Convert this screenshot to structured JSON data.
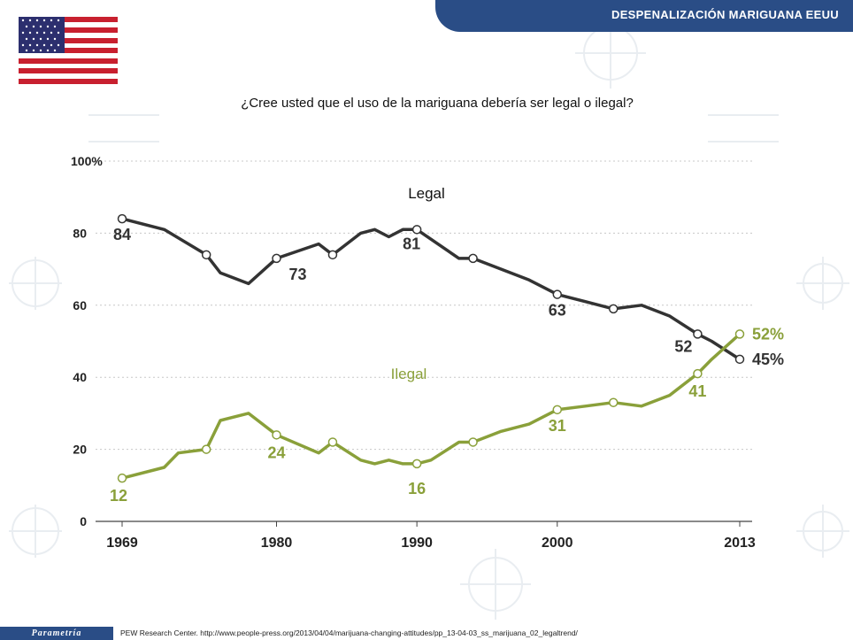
{
  "header": {
    "title": "DESPENALIZACIÓN   MARIGUANA  EEUU"
  },
  "flag": {
    "icon": "us-flag-icon"
  },
  "question": "¿Cree usted que el uso de la mariguana debería ser legal o ilegal?",
  "footer": {
    "logo_text": "Parametría",
    "source": "PEW Research Center.  http://www.people-press.org/2013/04/04/marijuana-changing-attitudes/pp_13-04-03_ss_marijuana_02_legaltrend/"
  },
  "colors": {
    "legal": "#333333",
    "ilegal": "#8aa03a",
    "header": "#2a4d86"
  },
  "chart_data": {
    "type": "line",
    "y_ticks": [
      "100%",
      "80",
      "60",
      "40",
      "20",
      "0"
    ],
    "x_ticks": [
      "1969",
      "1980",
      "1990",
      "2000",
      "2013"
    ],
    "ylim": [
      0,
      100
    ],
    "xlim": [
      1969,
      2013
    ],
    "grid": "horizontal dotted",
    "series": [
      {
        "name": "Legal",
        "color": "#333333",
        "points": [
          [
            1969,
            84
          ],
          [
            1972,
            81
          ],
          [
            1975,
            74
          ],
          [
            1976,
            69
          ],
          [
            1978,
            66
          ],
          [
            1980,
            73
          ],
          [
            1983,
            77
          ],
          [
            1984,
            74
          ],
          [
            1986,
            80
          ],
          [
            1987,
            81
          ],
          [
            1988,
            79
          ],
          [
            1989,
            81
          ],
          [
            1990,
            81
          ],
          [
            1993,
            73
          ],
          [
            1994,
            73
          ],
          [
            1998,
            67
          ],
          [
            2000,
            63
          ],
          [
            2002,
            61
          ],
          [
            2004,
            59
          ],
          [
            2006,
            60
          ],
          [
            2008,
            57
          ],
          [
            2010,
            52
          ],
          [
            2011,
            50
          ],
          [
            2013,
            45
          ]
        ],
        "markers": [
          1969,
          1975,
          1980,
          1984,
          1990,
          1994,
          2000,
          2004,
          2010,
          2013
        ],
        "labels": [
          {
            "x": 1969,
            "text": "84"
          },
          {
            "x": 1980,
            "text": "73"
          },
          {
            "x": 1990,
            "text": "81"
          },
          {
            "x": 2000,
            "text": "63"
          },
          {
            "x": 2010,
            "text": "52"
          },
          {
            "x": 2013,
            "text": "45%"
          }
        ]
      },
      {
        "name": "Ilegal",
        "color": "#8aa03a",
        "points": [
          [
            1969,
            12
          ],
          [
            1972,
            15
          ],
          [
            1973,
            19
          ],
          [
            1975,
            20
          ],
          [
            1976,
            28
          ],
          [
            1978,
            30
          ],
          [
            1980,
            24
          ],
          [
            1983,
            19
          ],
          [
            1984,
            22
          ],
          [
            1986,
            17
          ],
          [
            1987,
            16
          ],
          [
            1988,
            17
          ],
          [
            1989,
            16
          ],
          [
            1990,
            16
          ],
          [
            1991,
            17
          ],
          [
            1993,
            22
          ],
          [
            1994,
            22
          ],
          [
            1996,
            25
          ],
          [
            1998,
            27
          ],
          [
            2000,
            31
          ],
          [
            2002,
            32
          ],
          [
            2004,
            33
          ],
          [
            2006,
            32
          ],
          [
            2008,
            35
          ],
          [
            2010,
            41
          ],
          [
            2011,
            45
          ],
          [
            2013,
            52
          ]
        ],
        "markers": [
          1969,
          1975,
          1980,
          1984,
          1990,
          1994,
          2000,
          2004,
          2010,
          2013
        ],
        "labels": [
          {
            "x": 1969,
            "text": "12"
          },
          {
            "x": 1980,
            "text": "24"
          },
          {
            "x": 1990,
            "text": "16"
          },
          {
            "x": 2000,
            "text": "31"
          },
          {
            "x": 2010,
            "text": "41"
          },
          {
            "x": 2013,
            "text": "52%"
          }
        ]
      }
    ]
  }
}
